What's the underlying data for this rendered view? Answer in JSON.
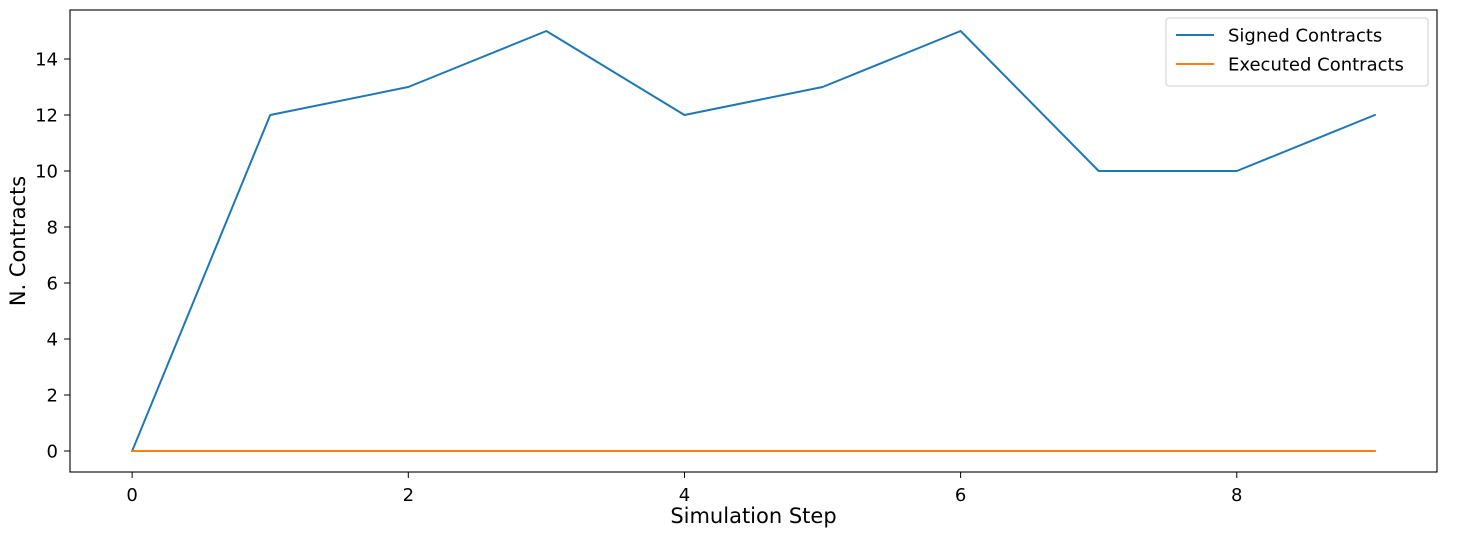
{
  "chart_data": {
    "type": "line",
    "title": "",
    "xlabel": "Simulation Step",
    "ylabel": "N. Contracts",
    "x": [
      0,
      1,
      2,
      3,
      4,
      5,
      6,
      7,
      8,
      9
    ],
    "xlim": [
      -0.45,
      9.45
    ],
    "ylim": [
      -0.75,
      15.75
    ],
    "xticks": [
      0,
      2,
      4,
      6,
      8
    ],
    "yticks": [
      0,
      2,
      4,
      6,
      8,
      10,
      12,
      14
    ],
    "grid": false,
    "legend_position": "top-right",
    "series": [
      {
        "name": "Signed Contracts",
        "color": "#1f77b4",
        "values": [
          0,
          12,
          13,
          15,
          12,
          13,
          15,
          10,
          10,
          12
        ]
      },
      {
        "name": "Executed Contracts",
        "color": "#ff7f0e",
        "values": [
          0,
          0,
          0,
          0,
          0,
          0,
          0,
          0,
          0,
          0
        ]
      }
    ]
  }
}
